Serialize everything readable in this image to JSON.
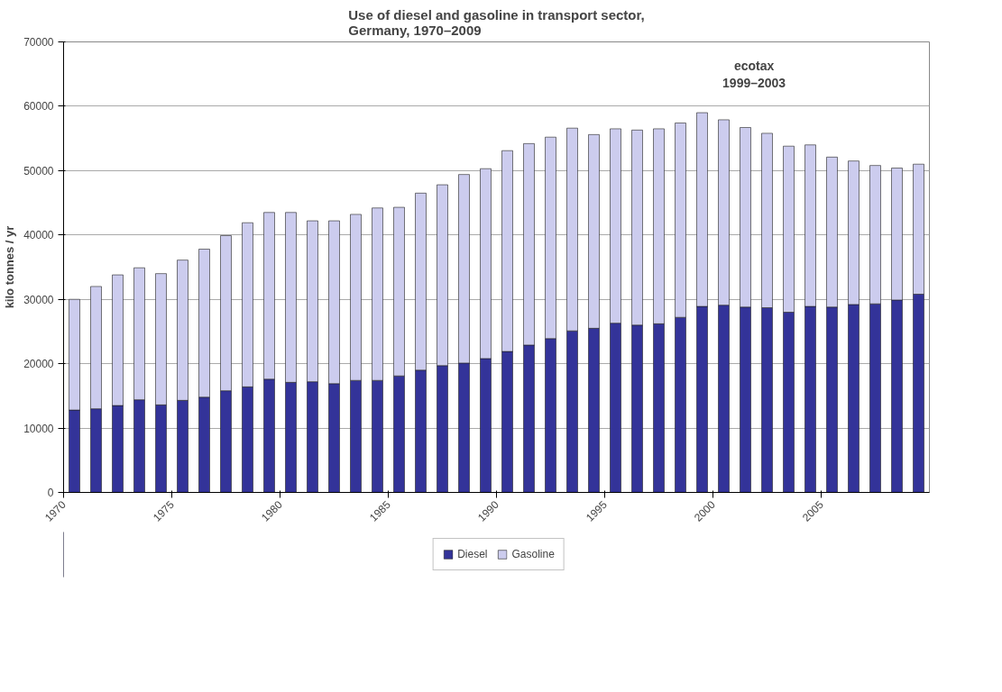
{
  "chart_data": {
    "type": "bar",
    "stacked": true,
    "title": "Use of diesel and gasoline in transport sector,\nGermany, 1970–2009",
    "ylabel": "kilo tonnes / yr",
    "categories": [
      "1970",
      null,
      null,
      null,
      null,
      "1975",
      null,
      null,
      null,
      null,
      "1980",
      null,
      null,
      null,
      null,
      "1985",
      null,
      null,
      null,
      null,
      "1990",
      null,
      null,
      null,
      null,
      "1995",
      null,
      null,
      null,
      null,
      "2000",
      null,
      null,
      null,
      null,
      "2005",
      null,
      null,
      null,
      null
    ],
    "series": [
      {
        "name": "Diesel",
        "color": "#333399",
        "values": [
          12800,
          13000,
          13500,
          14400,
          13600,
          14300,
          14800,
          15800,
          16400,
          17600,
          17100,
          17200,
          16900,
          17400,
          17400,
          18100,
          19000,
          19700,
          20100,
          20800,
          21900,
          22900,
          23900,
          25100,
          25500,
          26300,
          26000,
          26200,
          27200,
          28900,
          29100,
          28800,
          28700,
          28000,
          28900,
          28800,
          29200,
          29300,
          29900,
          30800
        ]
      },
      {
        "name": "Gasoline",
        "color": "#ccccee",
        "values": [
          17200,
          19000,
          20300,
          20500,
          20400,
          21800,
          23000,
          24100,
          25500,
          25900,
          26400,
          25000,
          25300,
          25800,
          26800,
          26200,
          27500,
          28100,
          29300,
          29500,
          31200,
          31300,
          31300,
          31500,
          30100,
          30200,
          30300,
          30300,
          30200,
          30100,
          28800,
          27900,
          27100,
          25800,
          25100,
          23300,
          22300,
          21500,
          20500,
          20200
        ]
      }
    ],
    "ylim": [
      0,
      70000
    ],
    "yticks": [
      0,
      10000,
      20000,
      30000,
      40000,
      50000,
      60000,
      70000
    ],
    "grid": "y",
    "legend": "bottom",
    "annotations": [
      "ecotax\n1999–2003"
    ]
  }
}
